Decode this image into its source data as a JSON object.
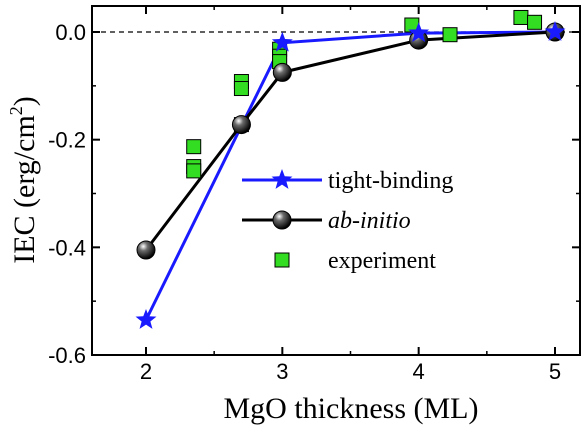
{
  "chart_data": {
    "type": "line",
    "xlabel": "MgO thickness (ML)",
    "ylabel": "IEC (erg/cm",
    "ylabel_superscript": "2",
    "ylabel_close": ")",
    "xlim": [
      1.75,
      5.2
    ],
    "ylim": [
      -0.6,
      0.05
    ],
    "xticks": [
      2,
      3,
      4,
      5
    ],
    "yticks": [
      0.0,
      -0.2,
      -0.4,
      -0.6
    ],
    "xtick_labels": [
      "2",
      "3",
      "4",
      "5"
    ],
    "ytick_labels": [
      "0.0",
      "-0.2",
      "-0.4",
      "-0.6"
    ],
    "reference_line_y": 0.0,
    "legend_position": "center-right",
    "series": [
      {
        "name": "tight-binding",
        "marker": "star",
        "color": "#1a1aff",
        "line": true,
        "x": [
          2,
          3,
          4,
          5
        ],
        "y": [
          -0.535,
          -0.02,
          -0.002,
          0.0
        ]
      },
      {
        "name": "ab-initio",
        "marker": "sphere",
        "color": "#000000",
        "line": true,
        "x": [
          2,
          2.7,
          3,
          4,
          5
        ],
        "y": [
          -0.405,
          -0.172,
          -0.075,
          -0.015,
          0.0
        ]
      },
      {
        "name": "experiment",
        "marker": "square",
        "color": "#33dd22",
        "line": false,
        "x": [
          2.35,
          2.35,
          2.35,
          2.7,
          2.7,
          2.7,
          2.98,
          2.98,
          2.98,
          3.95,
          4.23,
          4.75,
          4.85
        ],
        "y": [
          -0.213,
          -0.25,
          -0.258,
          -0.092,
          -0.105,
          -0.172,
          -0.032,
          -0.045,
          -0.055,
          0.013,
          -0.005,
          0.027,
          0.018
        ]
      }
    ]
  }
}
